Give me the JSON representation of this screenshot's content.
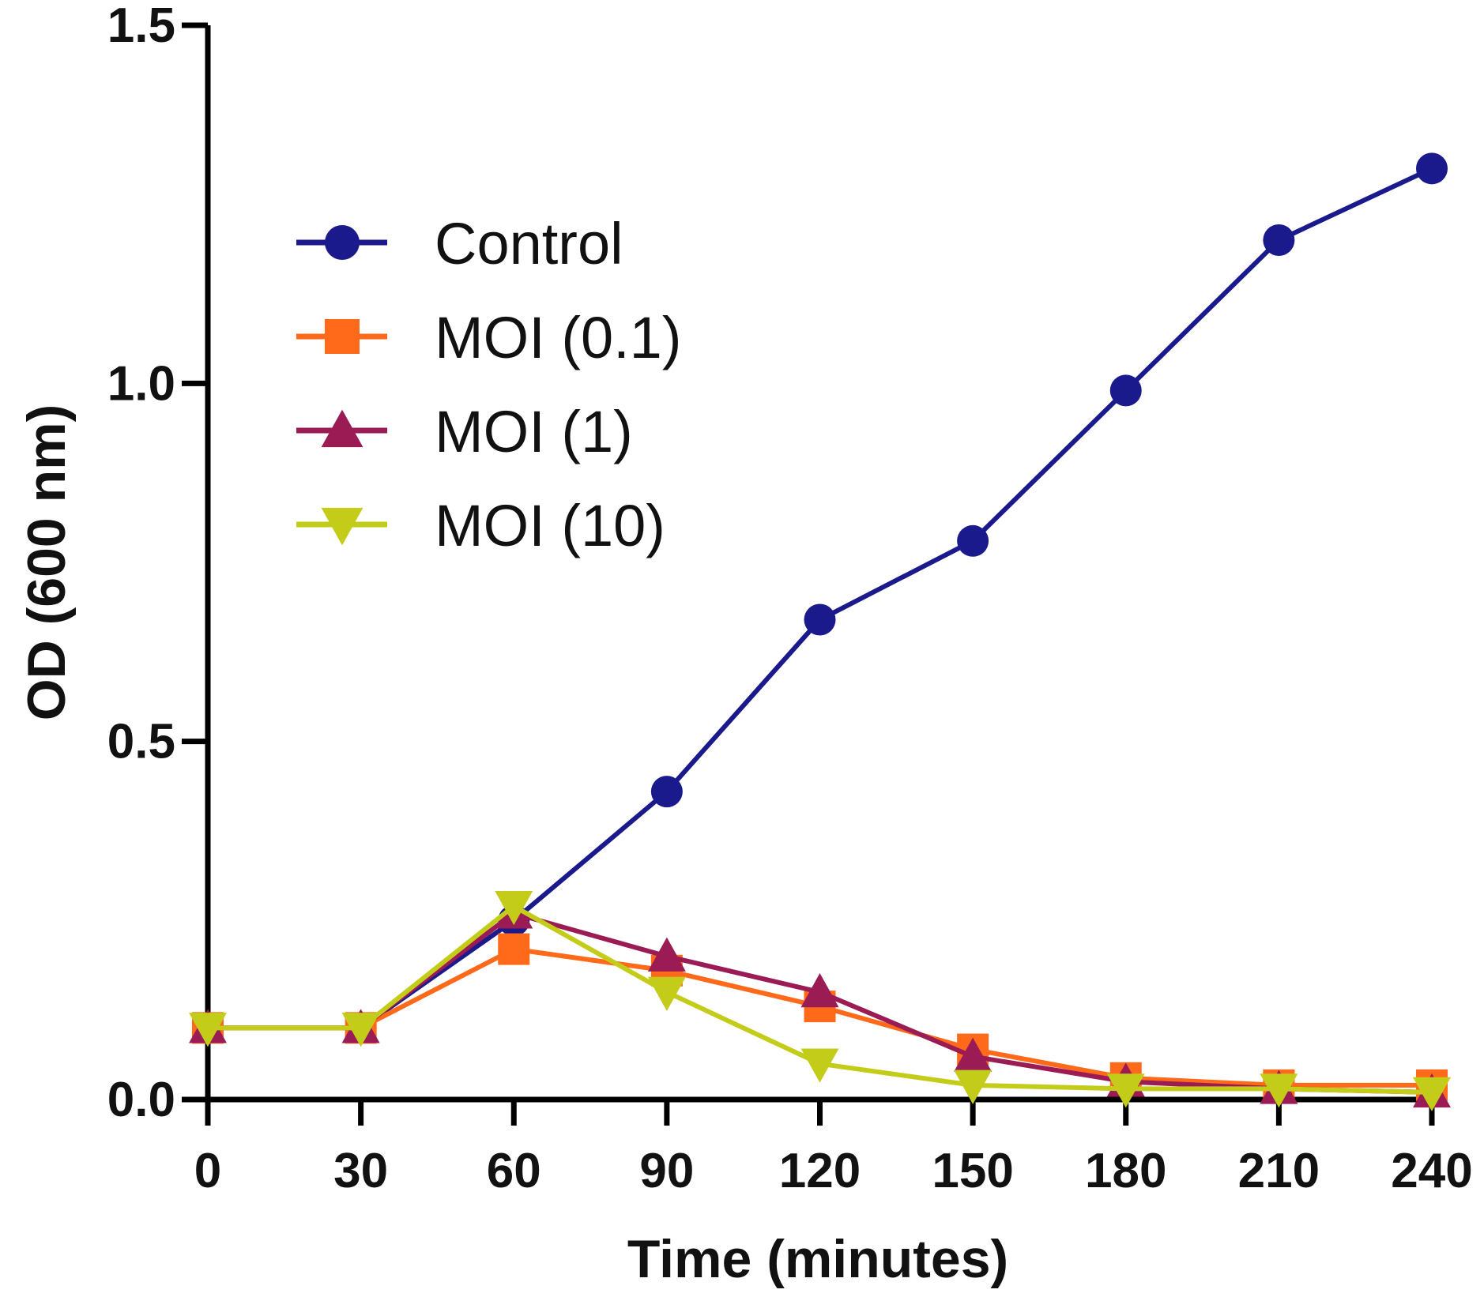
{
  "chart_data": {
    "type": "line",
    "title": "",
    "xlabel": "Time (minutes)",
    "ylabel": "OD (600 nm)",
    "x": [
      0,
      30,
      60,
      90,
      120,
      150,
      180,
      210,
      240
    ],
    "xticks": [
      "0",
      "30",
      "60",
      "90",
      "120",
      "150",
      "180",
      "210",
      "240"
    ],
    "yticks": [
      "0.0",
      "0.5",
      "1.0",
      "1.5"
    ],
    "xlim": [
      0,
      240
    ],
    "ylim": [
      0,
      1.5
    ],
    "grid": false,
    "legend_position": "upper-left",
    "series": [
      {
        "name": "Control",
        "marker": "circle",
        "color": "#1a1a8c",
        "values": [
          0.1,
          0.1,
          0.25,
          0.43,
          0.67,
          0.78,
          0.99,
          1.2,
          1.3
        ]
      },
      {
        "name": "MOI (0.1)",
        "marker": "square",
        "color": "#ff6a1a",
        "values": [
          0.1,
          0.1,
          0.21,
          0.18,
          0.13,
          0.07,
          0.03,
          0.02,
          0.02
        ]
      },
      {
        "name": "MOI (1)",
        "marker": "triangle-up",
        "color": "#9b1b55",
        "values": [
          0.1,
          0.1,
          0.26,
          0.2,
          0.15,
          0.06,
          0.025,
          0.015,
          0.01
        ]
      },
      {
        "name": "MOI (10)",
        "marker": "triangle-down",
        "color": "#c4cc1a",
        "values": [
          0.1,
          0.1,
          0.27,
          0.15,
          0.05,
          0.02,
          0.015,
          0.015,
          0.01
        ]
      }
    ]
  }
}
